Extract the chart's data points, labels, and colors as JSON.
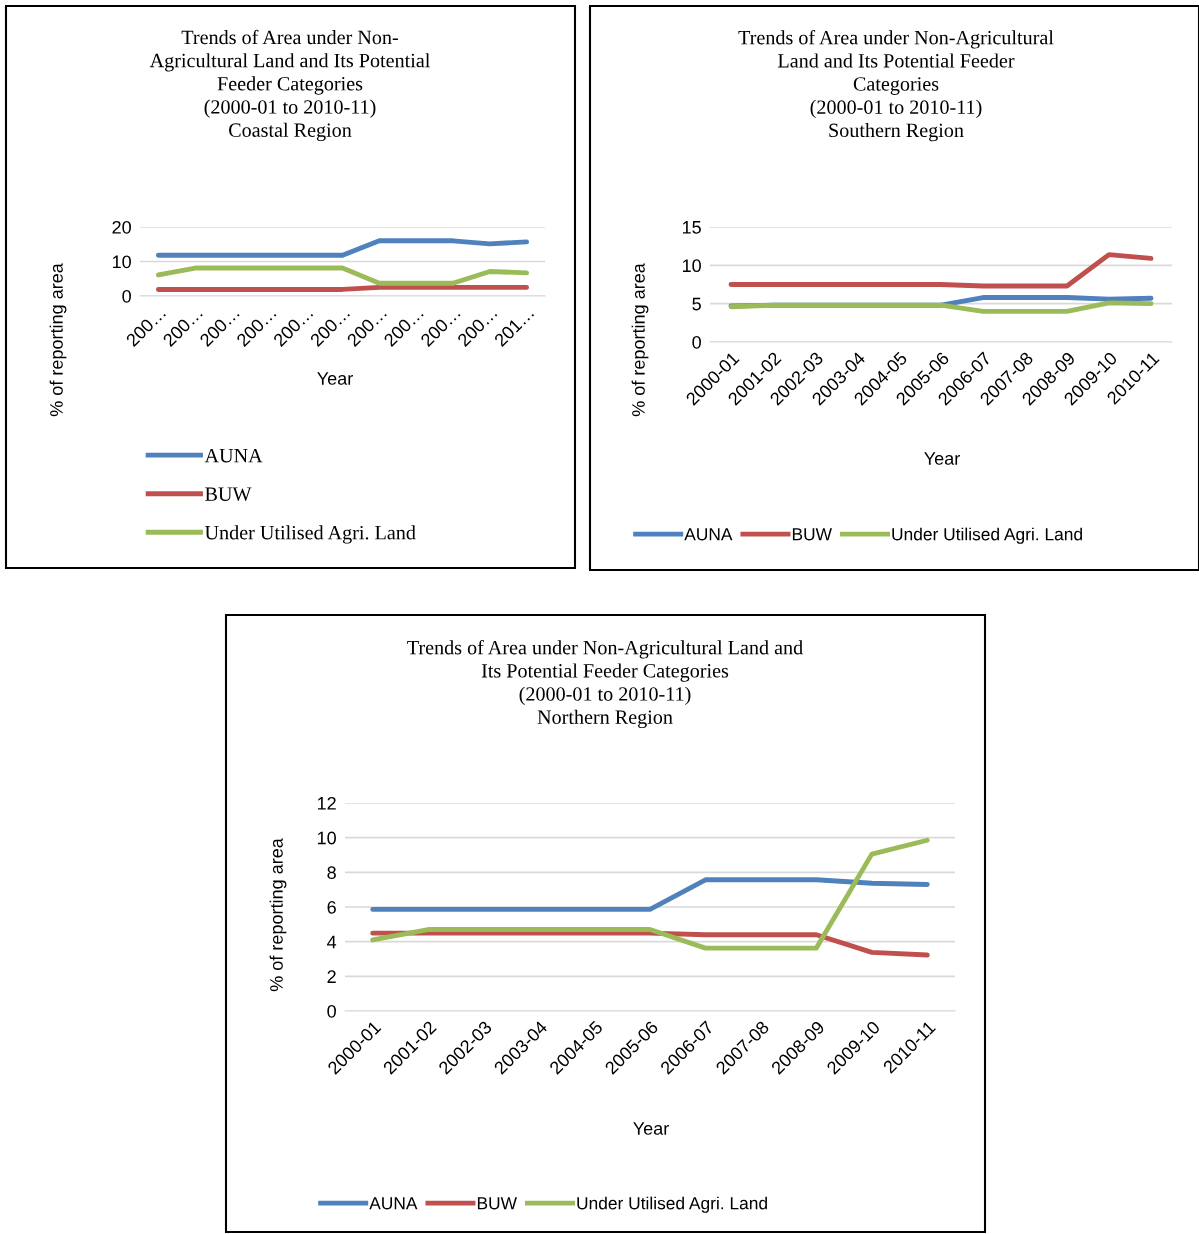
{
  "chart_data": [
    {
      "type": "line",
      "title": "Trends of Area under Non-\nAgricultural Land and Its Potential\nFeeder Categories\n(2000-01 to 2010-11)\nCoastal Region",
      "xlabel": "Year",
      "ylabel": "% of reporting area",
      "categories": [
        "200…",
        "200…",
        "200…",
        "200…",
        "200…",
        "200…",
        "200…",
        "200…",
        "200…",
        "200…",
        "201…"
      ],
      "series": [
        {
          "name": "AUNA",
          "color": "#4f81bd",
          "values": [
            11.8,
            11.8,
            11.8,
            11.8,
            11.8,
            11.8,
            16.0,
            16.0,
            16.0,
            15.1,
            15.7
          ]
        },
        {
          "name": "BUW",
          "color": "#c0504d",
          "values": [
            1.9,
            1.9,
            1.9,
            1.9,
            1.9,
            1.9,
            2.5,
            2.5,
            2.5,
            2.5,
            2.5
          ]
        },
        {
          "name": "Under Utilised Agri. Land",
          "color": "#9bbb59",
          "values": [
            6.1,
            8.1,
            8.1,
            8.1,
            8.1,
            8.1,
            3.7,
            3.7,
            3.7,
            7.1,
            6.7
          ]
        }
      ],
      "ylim": [
        0,
        20
      ],
      "yticks": [
        0,
        10,
        20
      ],
      "grid": "y",
      "legend": "bottom",
      "marker": "none",
      "line_style": "solid"
    },
    {
      "type": "line",
      "title": "Trends of Area under Non-Agricultural\nLand and Its Potential Feeder\nCategories\n(2000-01 to 2010-11)\nSouthern Region",
      "xlabel": "Year",
      "ylabel": "% of reporting area",
      "categories": [
        "2000-01",
        "2001-02",
        "2002-03",
        "2003-04",
        "2004-05",
        "2005-06",
        "2006-07",
        "2007-08",
        "2008-09",
        "2009-10",
        "2010-11"
      ],
      "series": [
        {
          "name": "AUNA",
          "color": "#4f81bd",
          "values": [
            4.7,
            4.8,
            4.8,
            4.8,
            4.8,
            4.8,
            5.8,
            5.8,
            5.8,
            5.6,
            5.7
          ]
        },
        {
          "name": "BUW",
          "color": "#c0504d",
          "values": [
            7.5,
            7.5,
            7.5,
            7.5,
            7.5,
            7.5,
            7.3,
            7.3,
            7.3,
            11.4,
            10.9
          ]
        },
        {
          "name": "Under Utilised Agri. Land",
          "color": "#9bbb59",
          "values": [
            4.6,
            4.8,
            4.8,
            4.8,
            4.8,
            4.8,
            4.0,
            4.0,
            4.0,
            5.1,
            5.0
          ]
        }
      ],
      "ylim": [
        0,
        15
      ],
      "yticks": [
        0,
        5,
        10,
        15
      ],
      "grid": "y",
      "legend": "bottom",
      "marker": "none",
      "line_style": "solid"
    },
    {
      "type": "line",
      "title": "Trends of Area under Non-Agricultural Land and\nIts Potential Feeder Categories\n(2000-01 to 2010-11)\nNorthern Region",
      "xlabel": "Year",
      "ylabel": "% of reporting area",
      "categories": [
        "2000-01",
        "2001-02",
        "2002-03",
        "2003-04",
        "2004-05",
        "2005-06",
        "2006-07",
        "2007-08",
        "2008-09",
        "2009-10",
        "2010-11"
      ],
      "series": [
        {
          "name": "AUNA",
          "color": "#4f81bd",
          "values": [
            5.86,
            5.86,
            5.86,
            5.86,
            5.86,
            5.86,
            7.57,
            7.57,
            7.57,
            7.37,
            7.3
          ]
        },
        {
          "name": "BUW",
          "color": "#c0504d",
          "values": [
            4.49,
            4.49,
            4.49,
            4.49,
            4.49,
            4.49,
            4.4,
            4.4,
            4.4,
            3.38,
            3.23
          ]
        },
        {
          "name": "Under Utilised Agri. Land",
          "color": "#9bbb59",
          "values": [
            4.1,
            4.7,
            4.7,
            4.7,
            4.7,
            4.7,
            3.63,
            3.63,
            3.63,
            9.05,
            9.85
          ]
        }
      ],
      "ylim": [
        0,
        12
      ],
      "yticks": [
        0,
        2,
        4,
        6,
        8,
        10,
        12
      ],
      "grid": "y",
      "legend": "bottom",
      "marker": "none",
      "line_style": "solid"
    }
  ]
}
